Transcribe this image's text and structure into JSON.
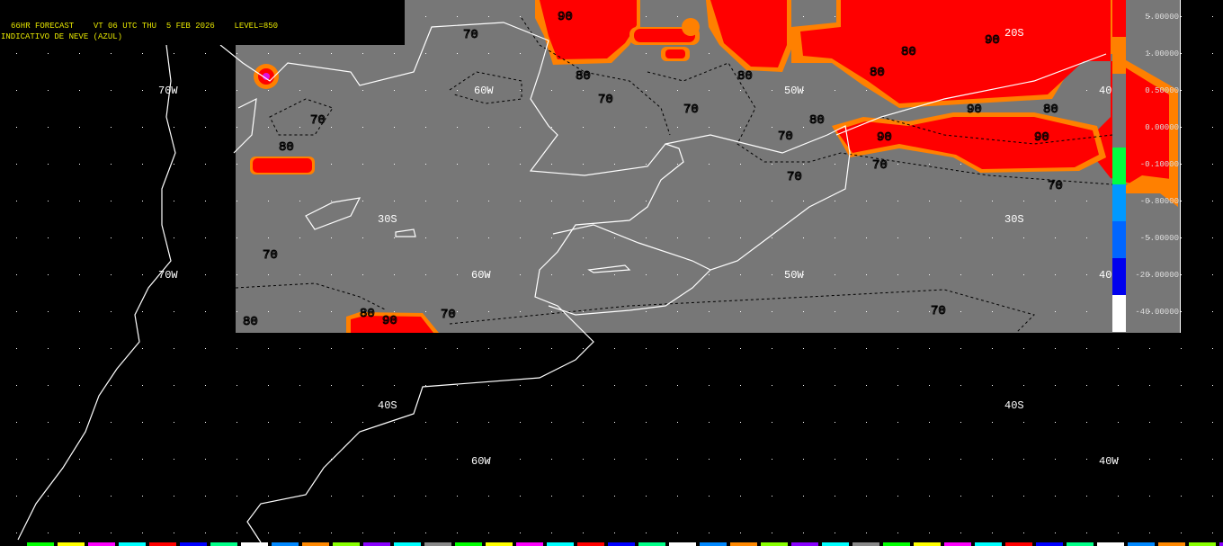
{
  "header": {
    "line1": "66HR FORECAST    VT 06 UTC THU  5 FEB 2026    LEVEL=850",
    "line2": "INDICATIVO DE NEVE (AZUL)"
  },
  "grid_labels": {
    "lon70_top": "70W",
    "lon60_top": "60W",
    "lon50_top": "50W",
    "lon40_top": "40",
    "lat20": "20S",
    "lat30_left": "30S",
    "lat30_right": "30S",
    "lon70_mid": "70W",
    "lon60_mid": "60W",
    "lon50_mid": "50W",
    "lon40_mid": "40",
    "lat40_left": "40S",
    "lat40_right": "40S",
    "lon60_bot": "60W",
    "lon40_bot": "40W"
  },
  "contour_labels": [
    "70",
    "80",
    "90"
  ],
  "colorbar": {
    "colors": [
      "#ff0000",
      "#ff8000",
      "#777777",
      "#777777",
      "#00ff40",
      "#0099ff",
      "#0066ff",
      "#0000ee",
      "#ffffff"
    ],
    "labels": [
      "5.00000",
      "1.00000",
      "0.50000",
      "0.00000",
      "-0.10000",
      "-0.80000",
      "-5.00000",
      "-20.00000",
      "-40.00000"
    ]
  },
  "colors": {
    "background": "#000000",
    "land_field": "#777777",
    "coastline": "#ffffff",
    "header_text": "#e6e600"
  }
}
